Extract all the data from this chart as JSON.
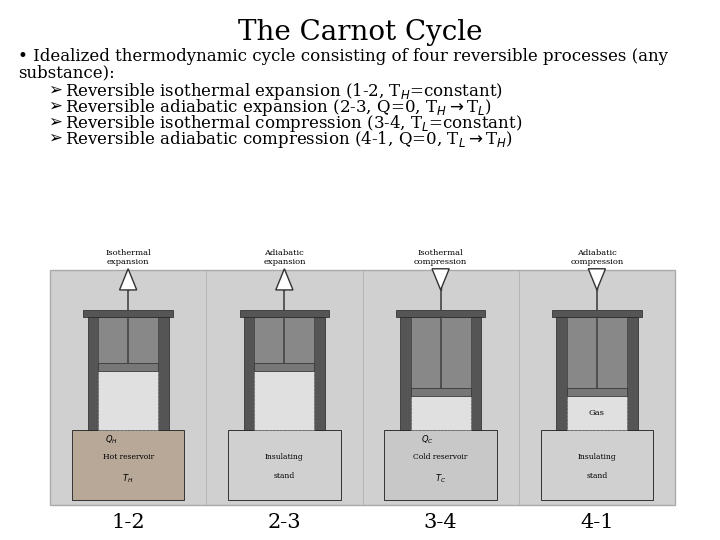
{
  "title": "The Carnot Cycle",
  "background_color": "#ffffff",
  "title_fontsize": 20,
  "title_font": "serif",
  "bullet_text_line1": "• Idealized thermodynamic cycle consisting of four reversible processes (any",
  "bullet_text_line2": "substance):",
  "bullet_items": [
    "Reversible isothermal expansion (1-2, T$_{H}$=constant)",
    "Reversible adiabatic expansion (2-3, Q=0, T$_{H}$$\\rightarrow$T$_{L}$)",
    "Reversible isothermal compression (3-4, T$_{L}$=constant)",
    "Reversible adiabatic compression (4-1, Q=0, T$_{L}$$\\rightarrow$T$_{H}$)"
  ],
  "image_labels": [
    "1-2",
    "2-3",
    "3-4",
    "4-1"
  ],
  "image_label_fontsize": 15,
  "image_label_font": "serif",
  "image_bg_color": "#d0d0d0",
  "text_color": "#000000",
  "body_fontsize": 12,
  "body_font": "serif",
  "indent_fontsize": 12,
  "indent_font": "serif"
}
